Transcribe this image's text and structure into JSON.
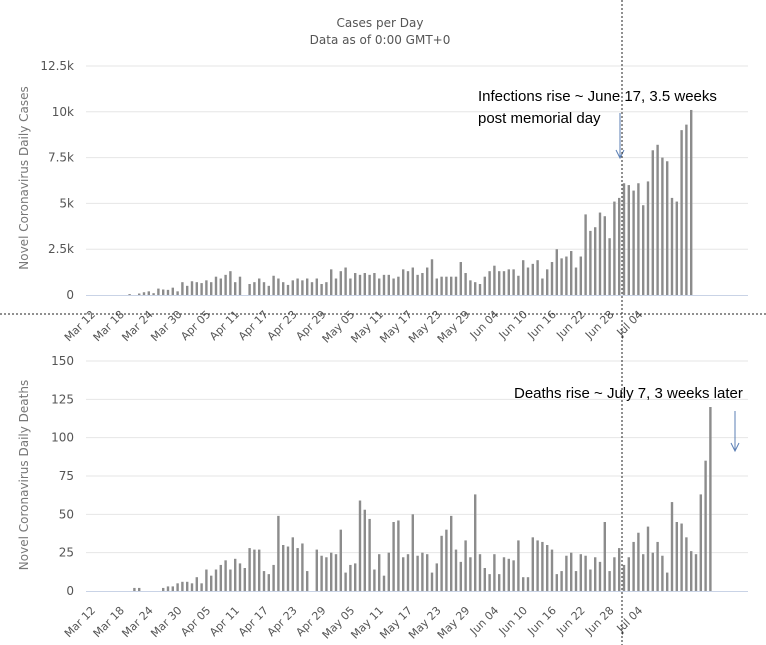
{
  "chart_data": [
    {
      "type": "bar",
      "title": "Cases per Day",
      "subtitle": "Data as of 0:00 GMT+0",
      "ylabel": "Novel Coronavirus Daily Cases",
      "ylim": [
        0,
        12500
      ],
      "y_ticks": [
        0,
        2500,
        5000,
        7500,
        10000,
        12500
      ],
      "y_tick_labels": [
        "0",
        "2.5k",
        "5k",
        "7.5k",
        "10k",
        "12.5k"
      ],
      "x_start": "Mar 12",
      "x_tick_labels": [
        "Mar 12",
        "Mar 18",
        "Mar 24",
        "Mar 30",
        "Apr 05",
        "Apr 11",
        "Apr 17",
        "Apr 23",
        "Apr 29",
        "May 05",
        "May 11",
        "May 17",
        "May 23",
        "May 29",
        "Jun 04",
        "Jun 10",
        "Jun 16",
        "Jun 22",
        "Jun 28",
        "Jul 04"
      ],
      "values": [
        0,
        0,
        0,
        0,
        0,
        0,
        0,
        0,
        50,
        0,
        80,
        150,
        200,
        100,
        350,
        300,
        280,
        400,
        200,
        700,
        500,
        750,
        700,
        650,
        800,
        700,
        1000,
        900,
        1100,
        1300,
        700,
        1000,
        0,
        600,
        700,
        900,
        700,
        500,
        1050,
        900,
        700,
        550,
        800,
        900,
        800,
        900,
        700,
        900,
        600,
        700,
        1400,
        900,
        1300,
        1500,
        900,
        1200,
        1100,
        1200,
        1100,
        1200,
        900,
        1100,
        1100,
        900,
        1000,
        1400,
        1300,
        1500,
        1100,
        1200,
        1500,
        1950,
        900,
        1000,
        1000,
        1000,
        1000,
        1800,
        1200,
        800,
        700,
        600,
        1000,
        1300,
        1600,
        1300,
        1300,
        1400,
        1400,
        1050,
        1900,
        1500,
        1700,
        1900,
        900,
        1400,
        1800,
        2500,
        2000,
        2100,
        2400,
        1500,
        2100,
        4400,
        3500,
        3700,
        4500,
        4300,
        3100,
        5100,
        5300,
        6100,
        6000,
        5700,
        6100,
        4900,
        6200,
        7900,
        8200,
        7500,
        7300,
        5300,
        5100,
        9000,
        9300,
        10100
      ],
      "annotation": "Infections rise ~ June 17, 3.5 weeks post memorial day"
    },
    {
      "type": "bar",
      "ylabel": "Novel Coronavirus Daily Deaths",
      "ylim": [
        0,
        150
      ],
      "y_ticks": [
        0,
        25,
        50,
        75,
        100,
        125,
        150
      ],
      "y_tick_labels": [
        "0",
        "25",
        "50",
        "75",
        "100",
        "125",
        "150"
      ],
      "x_start": "Mar 12",
      "x_tick_labels": [
        "Mar 12",
        "Mar 18",
        "Mar 24",
        "Mar 30",
        "Apr 05",
        "Apr 11",
        "Apr 17",
        "Apr 23",
        "Apr 29",
        "May 05",
        "May 11",
        "May 17",
        "May 23",
        "May 29",
        "Jun 04",
        "Jun 10",
        "Jun 16",
        "Jun 22",
        "Jun 28",
        "Jul 04"
      ],
      "values": [
        0,
        0,
        0,
        0,
        0,
        0,
        0,
        0,
        0,
        2,
        2,
        0,
        0,
        0,
        0,
        2,
        3,
        3,
        5,
        6,
        6,
        5,
        9,
        5,
        14,
        10,
        14,
        17,
        20,
        14,
        21,
        18,
        15,
        28,
        27,
        27,
        13,
        11,
        17,
        49,
        30,
        29,
        35,
        28,
        31,
        13,
        0,
        27,
        23,
        22,
        25,
        24,
        40,
        12,
        17,
        18,
        59,
        53,
        47,
        14,
        24,
        10,
        25,
        45,
        46,
        22,
        24,
        50,
        23,
        25,
        24,
        12,
        18,
        36,
        40,
        49,
        27,
        19,
        33,
        22,
        63,
        24,
        15,
        11,
        24,
        11,
        22,
        21,
        20,
        33,
        9,
        9,
        35,
        33,
        32,
        30,
        27,
        11,
        13,
        23,
        25,
        13,
        24,
        23,
        14,
        22,
        19,
        45,
        13,
        22,
        28,
        17,
        22,
        32,
        38,
        24,
        42,
        25,
        32,
        23,
        12,
        58,
        45,
        44,
        35,
        26,
        24,
        63,
        85,
        120
      ],
      "annotation": "Deaths rise ~ July 7, 3 weeks later"
    }
  ]
}
